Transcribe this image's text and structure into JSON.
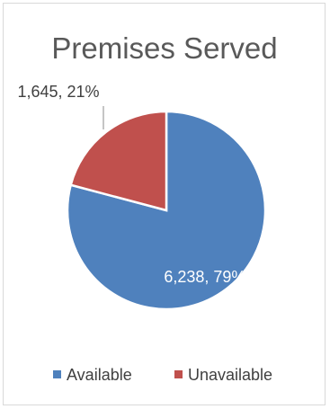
{
  "chart_data": {
    "type": "pie",
    "title": "Premises Served",
    "categories": [
      "Available",
      "Unavailable"
    ],
    "values": [
      6238,
      1645
    ],
    "percents": [
      79,
      21
    ],
    "data_labels": [
      "6,238, 79%",
      "1,645, 21%"
    ],
    "colors": [
      "#4f81bd",
      "#c0504d"
    ],
    "legend": {
      "placement": "bottom",
      "entries": [
        "Available",
        "Unavailable"
      ]
    },
    "start_angle_deg": 0,
    "direction": "clockwise"
  }
}
